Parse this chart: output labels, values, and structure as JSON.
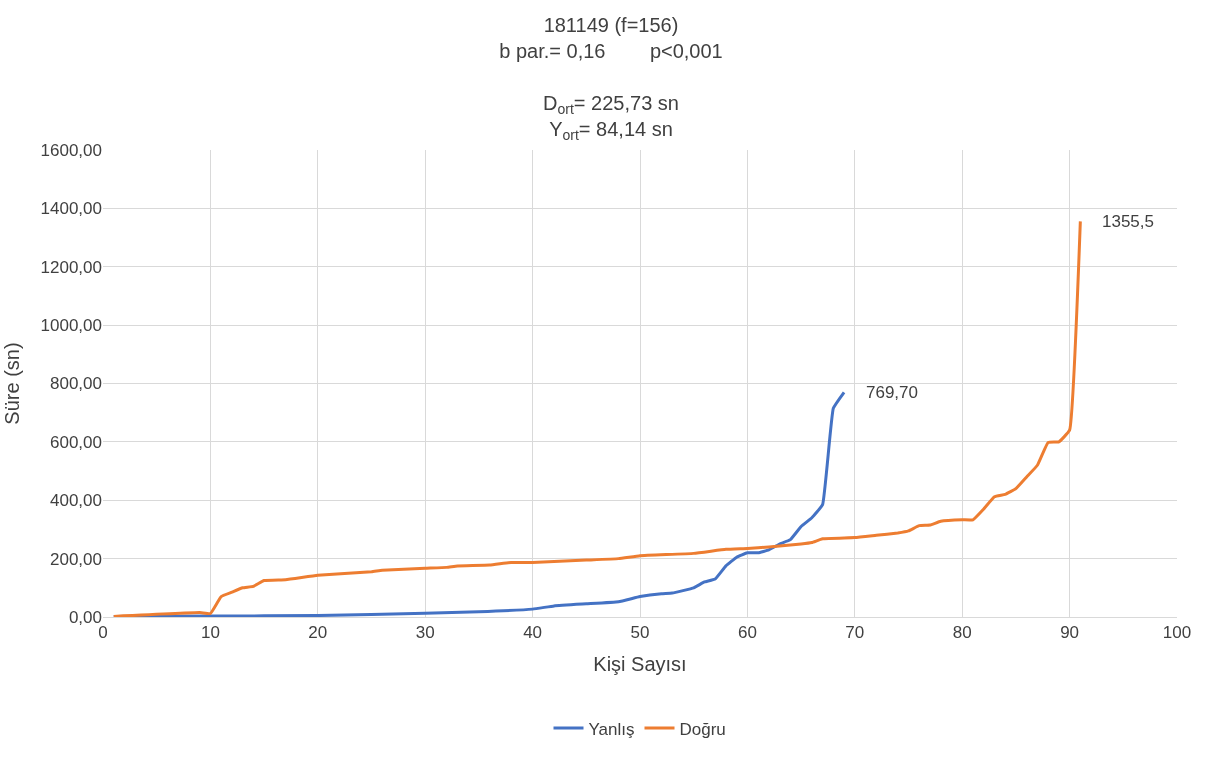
{
  "chart_data": {
    "type": "line",
    "title": "181149 (f=156)\nb par.= 0,16        p<0,001\n\nD$_{ort}$= 225,73 sn\nY$_{ort}$= 84,14 sn",
    "xlabel": "Kişi Sayısı",
    "ylabel": "Süre (sn)",
    "xlim": [
      0,
      100
    ],
    "xticks": [
      0,
      10,
      20,
      30,
      40,
      50,
      60,
      70,
      80,
      90,
      100
    ],
    "ylim": [
      0,
      1600
    ],
    "yticks": [
      {
        "value": 0,
        "label": "0,00"
      },
      {
        "value": 200,
        "label": "200,00"
      },
      {
        "value": 400,
        "label": "400,00"
      },
      {
        "value": 600,
        "label": "600,00"
      },
      {
        "value": 800,
        "label": "800,00"
      },
      {
        "value": 1000,
        "label": "1000,00"
      },
      {
        "value": 1200,
        "label": "1200,00"
      },
      {
        "value": 1400,
        "label": "1400,00"
      },
      {
        "value": 1600,
        "label": "1600,00"
      }
    ],
    "grid": true,
    "legend": "bottom",
    "marker": "none",
    "line_style": "solid",
    "series": [
      {
        "name": "Yanlış",
        "color": "#4472c4",
        "x": [
          1,
          10,
          20,
          30,
          35,
          40,
          42,
          45,
          48,
          50,
          52,
          53,
          55,
          56,
          57,
          58,
          59,
          60,
          61,
          62,
          63,
          64,
          65,
          66,
          67,
          68,
          69
        ],
        "values": [
          2,
          3,
          5,
          13,
          18,
          27,
          38,
          45,
          52,
          70,
          80,
          82,
          100,
          120,
          130,
          175,
          205,
          220,
          220,
          230,
          250,
          265,
          310,
          340,
          385,
          715,
          769.7
        ]
      },
      {
        "name": "Doğru",
        "color": "#ed7d31",
        "x": [
          1,
          9,
          10,
          11,
          12,
          13,
          14,
          15,
          17,
          20,
          25,
          26,
          30,
          32,
          33,
          36,
          38,
          40,
          45,
          48,
          50,
          55,
          58,
          60,
          62,
          65,
          66,
          67,
          70,
          72,
          74,
          75,
          76,
          77,
          78,
          80,
          81,
          82,
          83,
          84,
          85,
          86,
          87,
          88,
          89,
          90,
          91
        ],
        "values": [
          2,
          15,
          12,
          70,
          85,
          100,
          105,
          125,
          128,
          143,
          155,
          160,
          167,
          170,
          175,
          178,
          187,
          187,
          195,
          200,
          210,
          218,
          232,
          235,
          240,
          250,
          255,
          268,
          272,
          280,
          288,
          295,
          313,
          315,
          328,
          333,
          333,
          370,
          412,
          420,
          440,
          480,
          520,
          598,
          600,
          640,
          1355.5
        ]
      }
    ],
    "annotations": [
      {
        "text": "769,70",
        "x": 69,
        "y": 769.7
      },
      {
        "text": "1355,5",
        "x": 91,
        "y": 1355.5
      }
    ]
  }
}
